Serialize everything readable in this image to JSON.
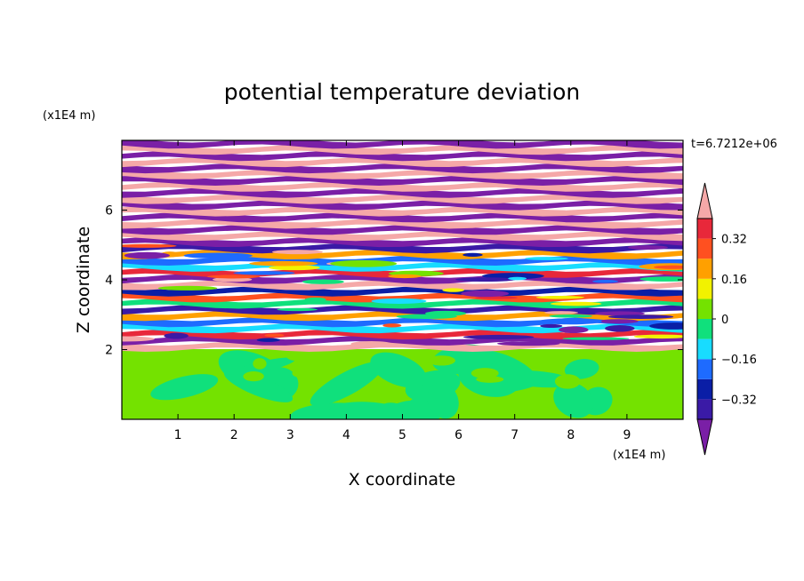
{
  "chart_data": {
    "type": "heatmap",
    "title": "potential temperature deviation",
    "xlabel": "X coordinate",
    "ylabel": "Z coordinate",
    "x_unit": "(x1E4 m)",
    "y_unit": "(x1E4 m)",
    "time_label": "t=6.7212e+06",
    "xlim": [
      0,
      10
    ],
    "ylim": [
      0,
      8
    ],
    "x_ticks": [
      "1",
      "2",
      "3",
      "4",
      "5",
      "6",
      "7",
      "8",
      "9"
    ],
    "y_ticks": [
      "2",
      "4",
      "6"
    ],
    "colorbar": {
      "levels": [
        -0.4,
        -0.32,
        -0.24,
        -0.16,
        -0.08,
        0,
        0.08,
        0.16,
        0.24,
        0.32,
        0.4
      ],
      "tick_labels": [
        "0.32",
        "0.16",
        "0",
        "−0.16",
        "−0.32"
      ],
      "tick_values": [
        0.32,
        0.16,
        0,
        -0.16,
        -0.32
      ],
      "extend": "both",
      "colors": [
        "#7a1fa6",
        "#3a1aa6",
        "#0a1ea6",
        "#1e6bff",
        "#18dcff",
        "#10e07c",
        "#74e200",
        "#f2f200",
        "#ffa000",
        "#ff5020",
        "#e8283a",
        "#f5a8a8"
      ]
    },
    "regions": [
      {
        "z_range": [
          0,
          2
        ],
        "description": "lower layer, values near 0 to 0.08"
      },
      {
        "z_range": [
          2,
          8
        ],
        "description": "upper layer, horizontal bands alternating between about -0.4 and 0.4"
      }
    ]
  }
}
